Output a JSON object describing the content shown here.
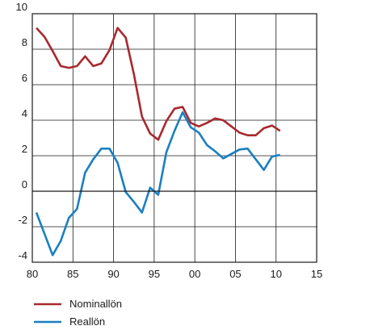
{
  "chart_data": {
    "type": "line",
    "title": "",
    "xlabel": "",
    "ylabel": "",
    "xlim": [
      1980,
      2015
    ],
    "ylim": [
      -4,
      10
    ],
    "x_ticks": [
      {
        "value": 1980,
        "label": "80"
      },
      {
        "value": 1985,
        "label": "85"
      },
      {
        "value": 1990,
        "label": "90"
      },
      {
        "value": 1995,
        "label": "95"
      },
      {
        "value": 2000,
        "label": "00"
      },
      {
        "value": 2005,
        "label": "05"
      },
      {
        "value": 2010,
        "label": "10"
      },
      {
        "value": 2015,
        "label": "15"
      }
    ],
    "y_ticks": [
      {
        "value": -4,
        "label": "-4"
      },
      {
        "value": -2,
        "label": "-2"
      },
      {
        "value": 0,
        "label": "0"
      },
      {
        "value": 2,
        "label": "2"
      },
      {
        "value": 4,
        "label": "4"
      },
      {
        "value": 6,
        "label": "6"
      },
      {
        "value": 8,
        "label": "8"
      },
      {
        "value": 10,
        "label": "10"
      }
    ],
    "grid": true,
    "legend_position": "bottom-left",
    "series": [
      {
        "name": "Nominallön",
        "color": "#a8292e",
        "points": [
          [
            1980.5,
            9.2
          ],
          [
            1981.5,
            8.7
          ],
          [
            1982.5,
            7.9
          ],
          [
            1983.5,
            7.05
          ],
          [
            1984.5,
            6.95
          ],
          [
            1985.5,
            7.05
          ],
          [
            1986.5,
            7.6
          ],
          [
            1987.5,
            7.05
          ],
          [
            1988.5,
            7.2
          ],
          [
            1989.5,
            7.95
          ],
          [
            1990.5,
            9.2
          ],
          [
            1991.5,
            8.65
          ],
          [
            1992.5,
            6.6
          ],
          [
            1993.5,
            4.2
          ],
          [
            1994.5,
            3.25
          ],
          [
            1995.5,
            2.9
          ],
          [
            1996.5,
            3.95
          ],
          [
            1997.5,
            4.65
          ],
          [
            1998.5,
            4.75
          ],
          [
            1999.5,
            3.85
          ],
          [
            2000.5,
            3.65
          ],
          [
            2001.5,
            3.85
          ],
          [
            2002.5,
            4.1
          ],
          [
            2003.5,
            4.0
          ],
          [
            2004.5,
            3.65
          ],
          [
            2005.5,
            3.3
          ],
          [
            2006.5,
            3.15
          ],
          [
            2007.5,
            3.15
          ],
          [
            2008.5,
            3.55
          ],
          [
            2009.5,
            3.7
          ],
          [
            2010.5,
            3.4
          ]
        ]
      },
      {
        "name": "Reallön",
        "color": "#1a7fc1",
        "points": [
          [
            1980.5,
            -1.2
          ],
          [
            1981.5,
            -2.4
          ],
          [
            1982.5,
            -3.6
          ],
          [
            1983.5,
            -2.8
          ],
          [
            1984.5,
            -1.5
          ],
          [
            1985.5,
            -1.0
          ],
          [
            1986.5,
            1.05
          ],
          [
            1987.5,
            1.8
          ],
          [
            1988.5,
            2.4
          ],
          [
            1989.5,
            2.4
          ],
          [
            1990.5,
            1.6
          ],
          [
            1991.5,
            -0.05
          ],
          [
            1992.5,
            -0.6
          ],
          [
            1993.5,
            -1.2
          ],
          [
            1994.5,
            0.2
          ],
          [
            1995.5,
            -0.2
          ],
          [
            1996.5,
            2.2
          ],
          [
            1997.5,
            3.4
          ],
          [
            1998.5,
            4.45
          ],
          [
            1999.5,
            3.6
          ],
          [
            2000.5,
            3.3
          ],
          [
            2001.5,
            2.6
          ],
          [
            2002.5,
            2.25
          ],
          [
            2003.5,
            1.85
          ],
          [
            2004.5,
            2.1
          ],
          [
            2005.5,
            2.35
          ],
          [
            2006.5,
            2.4
          ],
          [
            2007.5,
            1.8
          ],
          [
            2008.5,
            1.2
          ],
          [
            2009.5,
            1.95
          ],
          [
            2010.5,
            2.05
          ]
        ]
      }
    ]
  }
}
